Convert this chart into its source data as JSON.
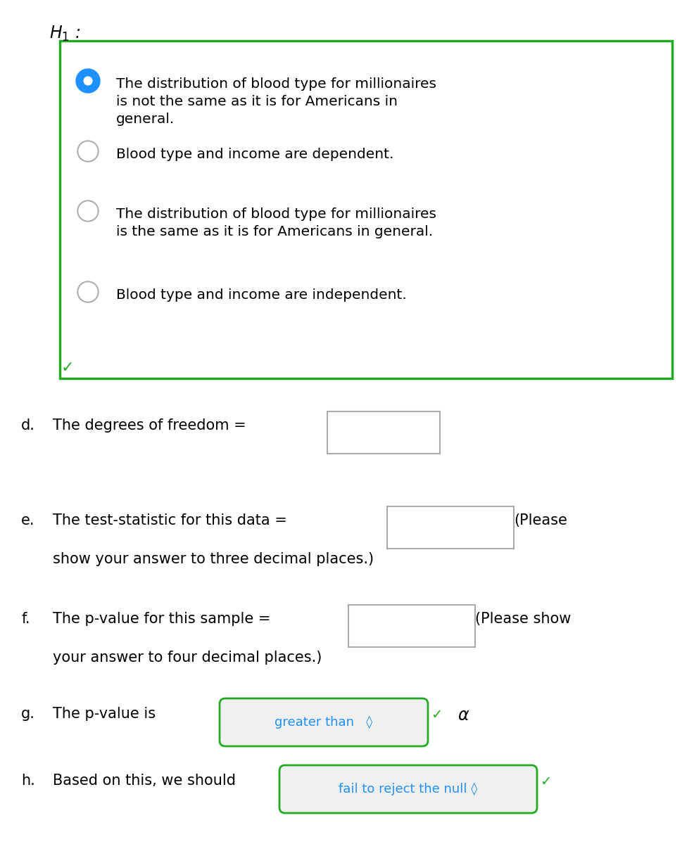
{
  "bg_color": "#ffffff",
  "h1_label": "$H_1$ :",
  "radio_options": [
    {
      "text": "The distribution of blood type for millionaires\nis not the same as it is for Americans in\ngeneral.",
      "selected": true
    },
    {
      "text": "Blood type and income are dependent.",
      "selected": false
    },
    {
      "text": "The distribution of blood type for millionaires\nis the same as it is for Americans in general.",
      "selected": false
    },
    {
      "text": "Blood type and income are independent.",
      "selected": false
    }
  ],
  "green_border_color": "#22aa22",
  "selected_radio_color": "#1e90ff",
  "unselected_radio_color": "#ffffff",
  "unselected_radio_border": "#aaaaaa",
  "checkmark_color": "#22aa22",
  "dropdown_text_color": "#1e90ff",
  "input_box_color": "#aaaaaa",
  "font_size_main": 15,
  "font_family": "DejaVu Sans"
}
